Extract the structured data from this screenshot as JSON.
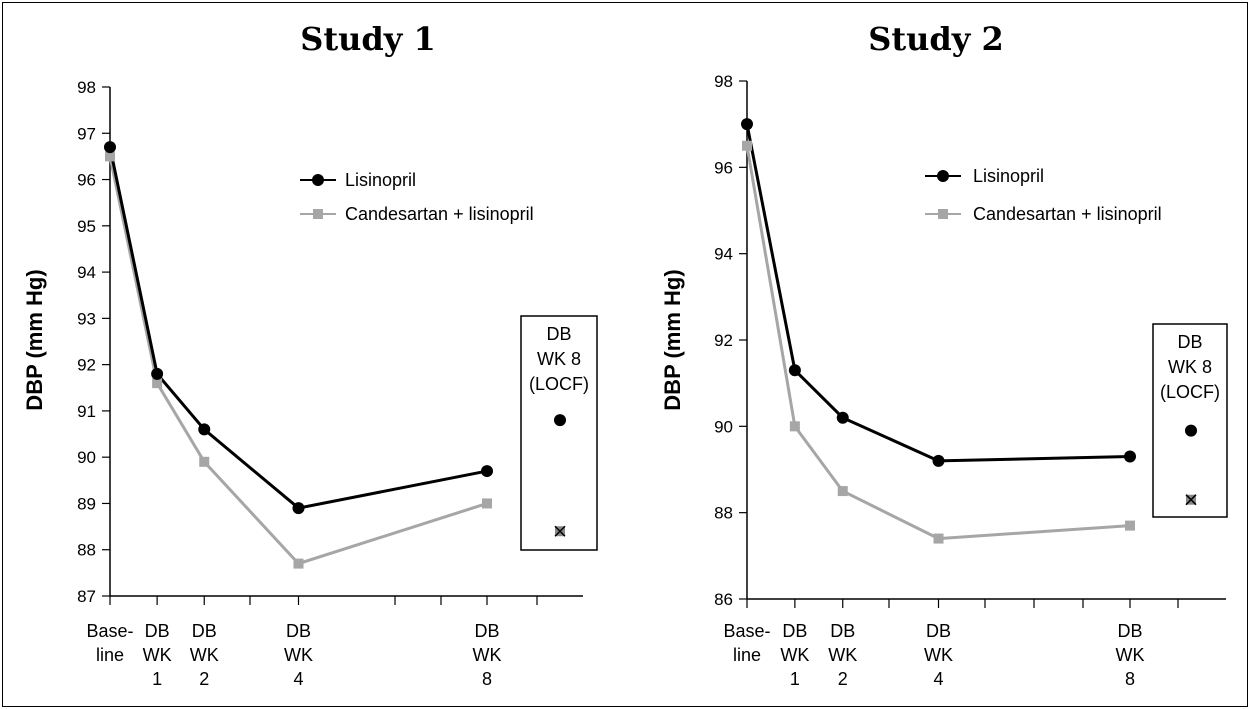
{
  "colors": {
    "lisinopril": "#000000",
    "combo": "#a6a6a6",
    "axis": "#000000"
  },
  "chart_data": [
    {
      "type": "line",
      "title": "Study 1",
      "ylabel": "DBP (mm Hg)",
      "ylim": [
        87,
        98
      ],
      "yticks": [
        "87",
        "88",
        "89",
        "90",
        "91",
        "92",
        "93",
        "94",
        "95",
        "96",
        "97",
        "98"
      ],
      "x_positions": [
        0,
        1,
        2,
        4,
        8
      ],
      "xtick_labels": [
        [
          "Base-",
          "line"
        ],
        [
          "DB",
          "WK",
          "1"
        ],
        [
          "DB",
          "WK",
          "2"
        ],
        [
          "DB",
          "WK",
          "4"
        ],
        [
          "DB",
          "WK",
          "8"
        ]
      ],
      "series": [
        {
          "name": "Lisinopril",
          "values": [
            96.7,
            91.8,
            90.6,
            88.9,
            89.7
          ],
          "locf": 90.8
        },
        {
          "name": "Candesartan + lisinopril",
          "values": [
            96.5,
            91.6,
            89.9,
            87.7,
            89.0
          ],
          "locf": 88.4
        }
      ],
      "box_label": [
        "DB",
        "WK 8",
        "(LOCF)"
      ],
      "legend_position": "top-right"
    },
    {
      "type": "line",
      "title": "Study 2",
      "ylabel": "DBP (mm Hg)",
      "ylim": [
        86,
        98
      ],
      "yticks": [
        "86",
        "88",
        "90",
        "92",
        "94",
        "96",
        "98"
      ],
      "x_positions": [
        0,
        1,
        2,
        4,
        8
      ],
      "xtick_labels": [
        [
          "Base-",
          "line"
        ],
        [
          "DB",
          "WK",
          "1"
        ],
        [
          "DB",
          "WK",
          "2"
        ],
        [
          "DB",
          "WK",
          "4"
        ],
        [
          "DB",
          "WK",
          "8"
        ]
      ],
      "series": [
        {
          "name": "Lisinopril",
          "values": [
            97.0,
            91.3,
            90.2,
            89.2,
            89.3
          ],
          "locf": 89.9
        },
        {
          "name": "Candesartan + lisinopril",
          "values": [
            96.5,
            90.0,
            88.5,
            87.4,
            87.7
          ],
          "locf": 88.3
        }
      ],
      "box_label": [
        "DB",
        "WK 8",
        "(LOCF)"
      ],
      "legend_position": "top-right"
    }
  ]
}
